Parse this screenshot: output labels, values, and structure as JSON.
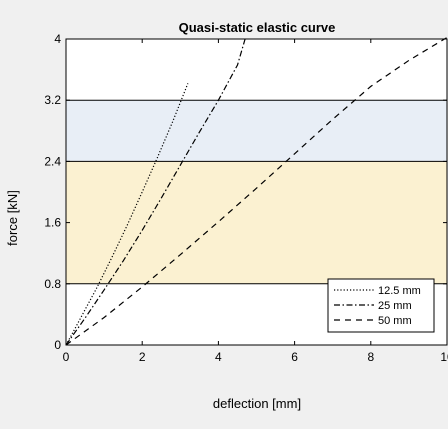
{
  "chart_data": {
    "type": "line",
    "title": "Quasi-static elastic curve",
    "xlabel": "deflection [mm]",
    "ylabel": "force [kN]",
    "xlim": [
      0,
      10
    ],
    "ylim": [
      0,
      4
    ],
    "x_ticks": [
      "0",
      "2",
      "4",
      "6",
      "8",
      "10"
    ],
    "y_ticks": [
      "0",
      "0.8",
      "1.6",
      "2.4",
      "3.2",
      "4"
    ],
    "grid": false,
    "legend_position": "bottom-right",
    "bands": [
      {
        "name": "upper-band",
        "y_from": 2.4,
        "y_to": 3.2,
        "color": "#e8eef6"
      },
      {
        "name": "middle-band",
        "y_from": 0.8,
        "y_to": 2.4,
        "color": "#fbf1d1"
      }
    ],
    "reference_lines": [
      0.8,
      2.4,
      3.2
    ],
    "series": [
      {
        "name": "12.5 mm",
        "style": "dotted",
        "x": [
          0,
          0.2,
          0.5,
          0.8,
          1.2,
          1.6,
          2.0,
          2.4,
          2.8,
          3.2
        ],
        "y": [
          0,
          0.18,
          0.46,
          0.74,
          1.14,
          1.56,
          2.0,
          2.45,
          2.92,
          3.42
        ]
      },
      {
        "name": "25 mm",
        "style": "dashdot",
        "x": [
          0,
          0.5,
          1.0,
          1.5,
          2.0,
          2.5,
          3.0,
          3.5,
          4.0,
          4.5,
          4.7
        ],
        "y": [
          0,
          0.35,
          0.72,
          1.1,
          1.5,
          1.92,
          2.35,
          2.78,
          3.2,
          3.66,
          4.0
        ]
      },
      {
        "name": "50 mm",
        "style": "dashed",
        "x": [
          0,
          1.0,
          2.0,
          3.0,
          4.0,
          5.0,
          6.0,
          7.0,
          8.0,
          9.0,
          10.0
        ],
        "y": [
          0,
          0.36,
          0.76,
          1.18,
          1.61,
          2.05,
          2.5,
          2.95,
          3.38,
          3.72,
          4.02
        ]
      }
    ]
  }
}
